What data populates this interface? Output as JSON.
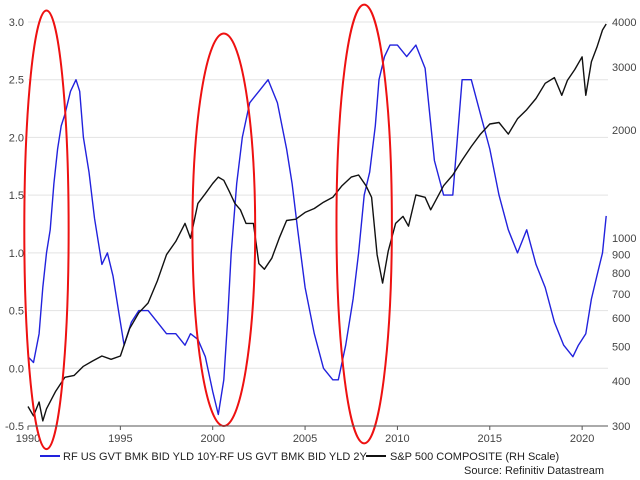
{
  "chart_data": {
    "type": "line",
    "grid": true,
    "x_range": [
      1990,
      2021.4
    ],
    "x_ticks": [
      "1990",
      "1995",
      "2000",
      "2005",
      "2010",
      "2015",
      "2020"
    ],
    "left_axis": {
      "range": [
        -0.5,
        3.0
      ],
      "ticks": [
        "-0.5",
        "0.0",
        "0.5",
        "1.0",
        "1.5",
        "2.0",
        "2.5",
        "3.0"
      ]
    },
    "right_axis": {
      "scale": "log",
      "range": [
        300,
        4000
      ],
      "ticks": [
        "300",
        "400",
        "500",
        "600",
        "700",
        "800",
        "900",
        "1000",
        "2000",
        "3000",
        "4000"
      ]
    },
    "legend_position": "bottom",
    "series": [
      {
        "name": "RF US GVT BMK BID YLD 10Y-RF US GVT BMK BID YLD 2Y",
        "axis": "left",
        "color": "#2222dd",
        "x": [
          1990.0,
          1990.3,
          1990.6,
          1990.8,
          1991.0,
          1991.2,
          1991.4,
          1991.6,
          1991.8,
          1992.0,
          1992.3,
          1992.6,
          1992.8,
          1993.0,
          1993.3,
          1993.6,
          1994.0,
          1994.3,
          1994.6,
          1994.9,
          1995.2,
          1995.6,
          1996.0,
          1996.5,
          1997.0,
          1997.5,
          1998.0,
          1998.5,
          1998.8,
          1999.2,
          1999.6,
          2000.0,
          2000.3,
          2000.6,
          2000.8,
          2001.0,
          2001.3,
          2001.6,
          2002.0,
          2002.5,
          2003.0,
          2003.5,
          2004.0,
          2004.3,
          2004.6,
          2005.0,
          2005.5,
          2006.0,
          2006.5,
          2006.8,
          2007.2,
          2007.6,
          2007.9,
          2008.2,
          2008.5,
          2008.8,
          2009.0,
          2009.3,
          2009.6,
          2010.0,
          2010.5,
          2011.0,
          2011.5,
          2012.0,
          2012.5,
          2013.0,
          2013.5,
          2014.0,
          2014.5,
          2015.0,
          2015.5,
          2016.0,
          2016.5,
          2017.0,
          2017.5,
          2018.0,
          2018.5,
          2019.0,
          2019.5,
          2019.8,
          2020.2,
          2020.5,
          2020.8,
          2021.1,
          2021.3
        ],
        "y": [
          0.1,
          0.05,
          0.3,
          0.7,
          1.0,
          1.2,
          1.6,
          1.9,
          2.1,
          2.2,
          2.4,
          2.5,
          2.4,
          2.0,
          1.7,
          1.3,
          0.9,
          1.0,
          0.8,
          0.5,
          0.2,
          0.4,
          0.5,
          0.5,
          0.4,
          0.3,
          0.3,
          0.2,
          0.3,
          0.25,
          0.1,
          -0.2,
          -0.4,
          -0.1,
          0.4,
          1.0,
          1.6,
          2.0,
          2.3,
          2.4,
          2.5,
          2.3,
          1.9,
          1.6,
          1.2,
          0.7,
          0.3,
          0.0,
          -0.1,
          -0.1,
          0.2,
          0.6,
          1.0,
          1.5,
          1.7,
          2.1,
          2.5,
          2.7,
          2.8,
          2.8,
          2.7,
          2.8,
          2.6,
          1.8,
          1.5,
          1.5,
          2.5,
          2.5,
          2.2,
          1.9,
          1.5,
          1.2,
          1.0,
          1.2,
          0.9,
          0.7,
          0.4,
          0.2,
          0.1,
          0.2,
          0.3,
          0.6,
          0.8,
          1.0,
          1.32
        ]
      },
      {
        "name": "S&P 500 COMPOSITE (RH Scale)",
        "axis": "right",
        "color": "#111111",
        "x": [
          1990.0,
          1990.3,
          1990.6,
          1990.8,
          1991.0,
          1991.5,
          1992.0,
          1992.5,
          1993.0,
          1993.5,
          1994.0,
          1994.5,
          1995.0,
          1995.5,
          1996.0,
          1996.5,
          1997.0,
          1997.5,
          1998.0,
          1998.5,
          1998.8,
          1999.2,
          1999.6,
          2000.0,
          2000.3,
          2000.6,
          2000.9,
          2001.2,
          2001.5,
          2001.8,
          2002.2,
          2002.5,
          2002.8,
          2003.2,
          2003.6,
          2004.0,
          2004.5,
          2005.0,
          2005.5,
          2006.0,
          2006.5,
          2007.0,
          2007.5,
          2007.9,
          2008.3,
          2008.6,
          2008.9,
          2009.2,
          2009.5,
          2009.9,
          2010.3,
          2010.6,
          2011.0,
          2011.5,
          2011.8,
          2012.5,
          2013.0,
          2013.5,
          2014.0,
          2014.5,
          2015.0,
          2015.5,
          2016.0,
          2016.5,
          2017.0,
          2017.5,
          2018.0,
          2018.5,
          2018.9,
          2019.2,
          2019.6,
          2020.0,
          2020.2,
          2020.5,
          2020.8,
          2021.1,
          2021.3
        ],
        "y": [
          340,
          320,
          350,
          310,
          335,
          375,
          410,
          415,
          440,
          455,
          470,
          460,
          470,
          560,
          620,
          660,
          760,
          900,
          980,
          1100,
          1000,
          1250,
          1330,
          1420,
          1480,
          1450,
          1350,
          1250,
          1200,
          1100,
          1100,
          850,
          820,
          880,
          1000,
          1120,
          1130,
          1180,
          1210,
          1260,
          1300,
          1400,
          1480,
          1500,
          1400,
          1300,
          900,
          750,
          920,
          1100,
          1150,
          1080,
          1320,
          1300,
          1200,
          1400,
          1500,
          1650,
          1800,
          1950,
          2080,
          2100,
          1950,
          2150,
          2280,
          2450,
          2700,
          2800,
          2500,
          2750,
          2950,
          3200,
          2500,
          3100,
          3400,
          3800,
          3950
        ]
      }
    ]
  },
  "highlight_ellipses": [
    {
      "x_center": 1991.0,
      "y_center": 1.2,
      "x_halfwidth": 1.2,
      "y_halfwidth": 1.9
    },
    {
      "x_center": 2000.6,
      "y_center": 1.2,
      "x_halfwidth": 1.7,
      "y_halfwidth": 1.7
    },
    {
      "x_center": 2008.2,
      "y_center": 1.25,
      "x_halfwidth": 1.5,
      "y_halfwidth": 1.9
    }
  ],
  "source": "Source: Refinitiv Datastream"
}
